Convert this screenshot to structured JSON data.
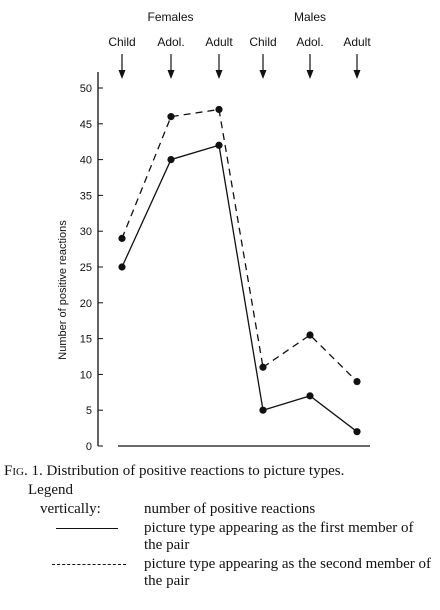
{
  "chart_data": {
    "type": "line",
    "ylabel": "Number of positive reactions",
    "ylim": [
      0,
      50
    ],
    "yticks": [
      0,
      5,
      10,
      15,
      20,
      25,
      30,
      35,
      40,
      45,
      50
    ],
    "groups": [
      {
        "name": "Females",
        "categories": [
          "Child",
          "Adol.",
          "Adult"
        ]
      },
      {
        "name": "Males",
        "categories": [
          "Child",
          "Adol.",
          "Adult"
        ]
      }
    ],
    "categories": [
      "Child",
      "Adol.",
      "Adult",
      "Child",
      "Adol.",
      "Adult"
    ],
    "series": [
      {
        "key": "first",
        "style": "solid",
        "values": [
          25,
          40,
          42,
          5,
          7,
          2
        ]
      },
      {
        "key": "second",
        "style": "dashed",
        "values": [
          29,
          46,
          47,
          11,
          15.5,
          9
        ]
      }
    ]
  },
  "caption": {
    "label": "Fig. 1.",
    "text": "Distribution of positive reactions to picture types."
  },
  "legend": {
    "title": "Legend",
    "vertical_key": "vertically:",
    "vertical_text": "number of positive reactions",
    "solid_text": "picture type appearing as the first member of the pair",
    "dashed_text": "picture type appearing as the second member of the pair"
  }
}
